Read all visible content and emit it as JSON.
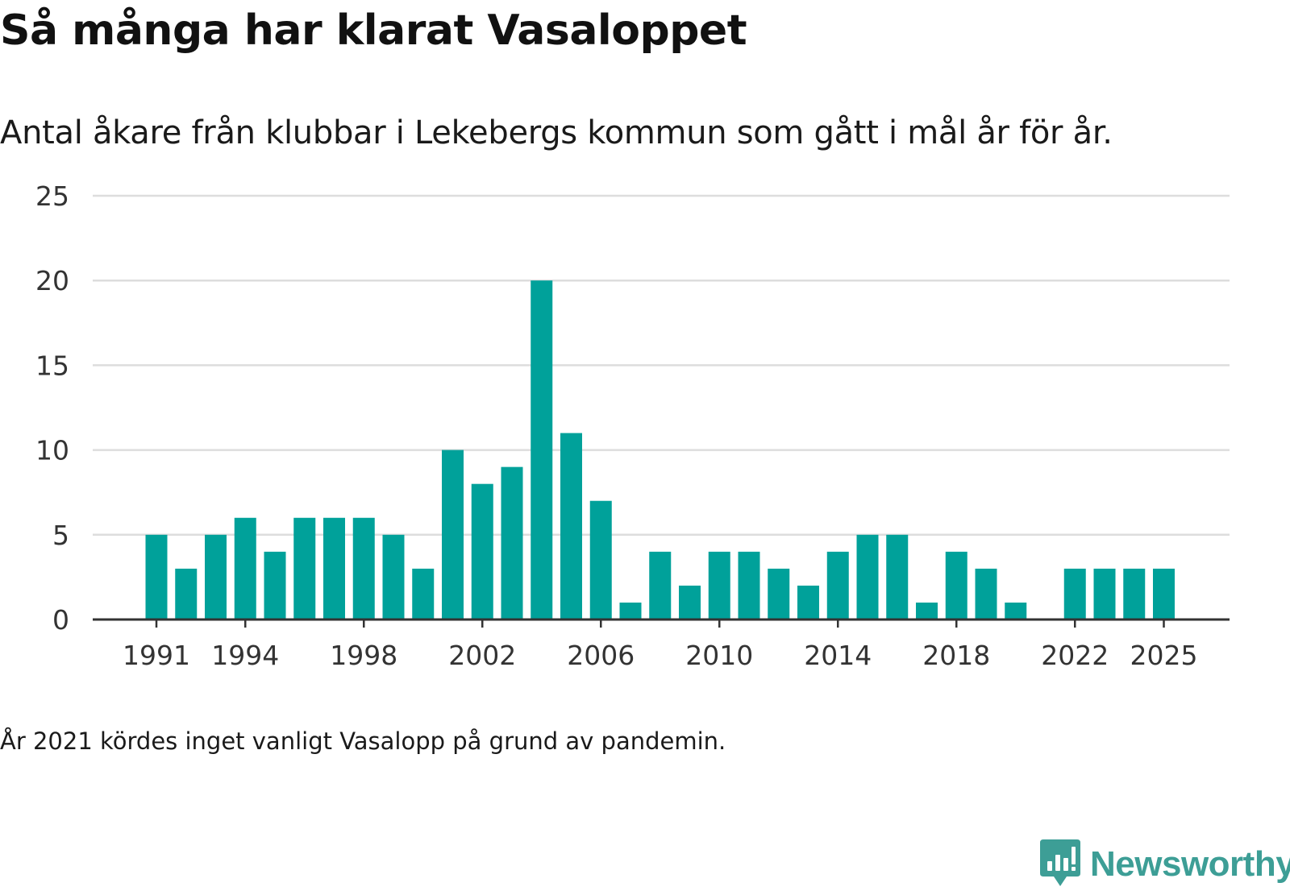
{
  "header": {
    "title": "Så många har klarat Vasaloppet",
    "subtitle": "Antal åkare från klubbar i Lekebergs kommun som gått i mål år för år."
  },
  "footnote": "År 2021 kördes inget vanligt Vasalopp på grund av pandemin.",
  "brand": {
    "name": "Newsworthy",
    "icon": "newsworthy-logo-icon",
    "color": "#3d9e96"
  },
  "colors": {
    "bar": "#00a19a",
    "grid": "#dddddd",
    "axis": "#333333",
    "tick_label": "#333333"
  },
  "chart_data": {
    "type": "bar",
    "title": "Så många har klarat Vasaloppet",
    "xlabel": "",
    "ylabel": "",
    "ylim": [
      0,
      25
    ],
    "yticks": [
      0,
      5,
      10,
      15,
      20,
      25
    ],
    "xticks": [
      1991,
      1994,
      1998,
      2002,
      2006,
      2010,
      2014,
      2018,
      2022,
      2025
    ],
    "grid": true,
    "legend": "none",
    "categories": [
      1991,
      1992,
      1993,
      1994,
      1995,
      1996,
      1997,
      1998,
      1999,
      2000,
      2001,
      2002,
      2003,
      2004,
      2005,
      2006,
      2007,
      2008,
      2009,
      2010,
      2011,
      2012,
      2013,
      2014,
      2015,
      2016,
      2017,
      2018,
      2019,
      2020,
      2021,
      2022,
      2023,
      2024,
      2025
    ],
    "values": [
      5,
      3,
      5,
      6,
      4,
      6,
      6,
      6,
      5,
      3,
      10,
      8,
      9,
      20,
      11,
      7,
      1,
      4,
      2,
      4,
      4,
      3,
      2,
      4,
      5,
      5,
      1,
      4,
      3,
      1,
      null,
      3,
      3,
      3,
      3
    ]
  }
}
